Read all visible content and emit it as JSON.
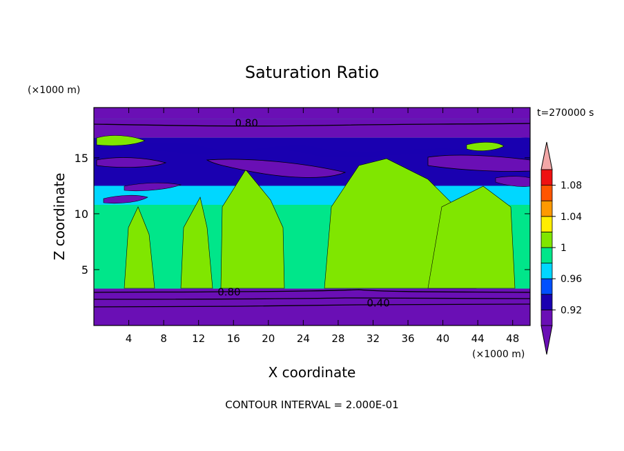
{
  "chart_data": {
    "type": "heatmap",
    "title": "Saturation Ratio",
    "xlabel": "X coordinate",
    "ylabel": "Z coordinate",
    "x_unit_label": "(×1000 m)",
    "y_unit_label": "(×1000 m)",
    "time_label": "t=270000 s",
    "contour_interval_label": "CONTOUR INTERVAL = 2.000E-01",
    "xlim": [
      0,
      50
    ],
    "ylim": [
      0,
      19.5
    ],
    "x_ticks": [
      4,
      8,
      12,
      16,
      20,
      24,
      28,
      32,
      36,
      40,
      44,
      48
    ],
    "y_ticks": [
      5,
      10,
      15
    ],
    "contour_labels": [
      {
        "text": "0.80",
        "x": 17.5,
        "z": 18.1
      },
      {
        "text": "0.80",
        "x": 15.5,
        "z": 3.0
      },
      {
        "text": "0.40",
        "x": 32.6,
        "z": 2.0
      }
    ],
    "colorbar": {
      "levels": [
        0.9,
        0.92,
        0.94,
        0.96,
        0.98,
        1.0,
        1.02,
        1.04,
        1.06,
        1.08,
        1.1
      ],
      "tick_labels": [
        "0.92",
        "0.96",
        "1",
        "1.04",
        "1.08"
      ],
      "colors": [
        "#6a0fb5",
        "#1a00b0",
        "#0050ff",
        "#00d7ff",
        "#00e68a",
        "#80e600",
        "#ffee00",
        "#ff9900",
        "#ff5500",
        "#ee1111"
      ],
      "under_color": "#6a0fb5",
      "over_color": "#f2a7a7"
    },
    "bands": [
      {
        "z0": 0,
        "z1": 3.3,
        "value": 0.6
      },
      {
        "z0": 3.3,
        "z1": 10.8,
        "value": 0.99
      },
      {
        "z0": 10.8,
        "z1": 12.5,
        "value": 0.97
      },
      {
        "z0": 12.5,
        "z1": 16.8,
        "value": 0.93
      },
      {
        "z0": 16.8,
        "z1": 18.5,
        "value": 0.8
      },
      {
        "z0": 18.5,
        "z1": 19.5,
        "value": 0.85
      }
    ]
  }
}
